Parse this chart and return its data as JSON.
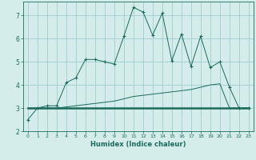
{
  "xlabel": "Humidex (Indice chaleur)",
  "x": [
    0,
    1,
    2,
    3,
    4,
    5,
    6,
    7,
    8,
    9,
    10,
    11,
    12,
    13,
    14,
    15,
    16,
    17,
    18,
    19,
    20,
    21,
    22,
    23
  ],
  "line1": [
    2.5,
    3.0,
    3.1,
    3.1,
    4.1,
    4.3,
    5.1,
    5.1,
    5.0,
    4.9,
    6.1,
    7.35,
    7.15,
    6.15,
    7.1,
    5.05,
    6.2,
    4.8,
    6.1,
    4.75,
    5.0,
    3.9,
    3.0,
    3.0
  ],
  "line2": [
    3.0,
    3.0,
    3.0,
    3.0,
    3.05,
    3.1,
    3.15,
    3.2,
    3.25,
    3.3,
    3.4,
    3.5,
    3.55,
    3.6,
    3.65,
    3.7,
    3.75,
    3.8,
    3.9,
    4.0,
    4.05,
    3.0,
    3.0,
    3.0
  ],
  "line3": [
    3.0,
    3.0,
    3.0,
    3.0,
    3.0,
    3.0,
    3.0,
    3.0,
    3.0,
    3.0,
    3.0,
    3.0,
    3.0,
    3.0,
    3.0,
    3.0,
    3.0,
    3.0,
    3.0,
    3.0,
    3.0,
    3.0,
    3.0,
    3.0
  ],
  "line_color": "#1a6b5a",
  "bg_color": "#d4ecea",
  "grid_color": "#9ecece",
  "ylim": [
    2,
    7.6
  ],
  "xlim": [
    -0.5,
    23.5
  ],
  "yticks": [
    2,
    3,
    4,
    5,
    6,
    7
  ],
  "xticks": [
    0,
    1,
    2,
    3,
    4,
    5,
    6,
    7,
    8,
    9,
    10,
    11,
    12,
    13,
    14,
    15,
    16,
    17,
    18,
    19,
    20,
    21,
    22,
    23
  ]
}
